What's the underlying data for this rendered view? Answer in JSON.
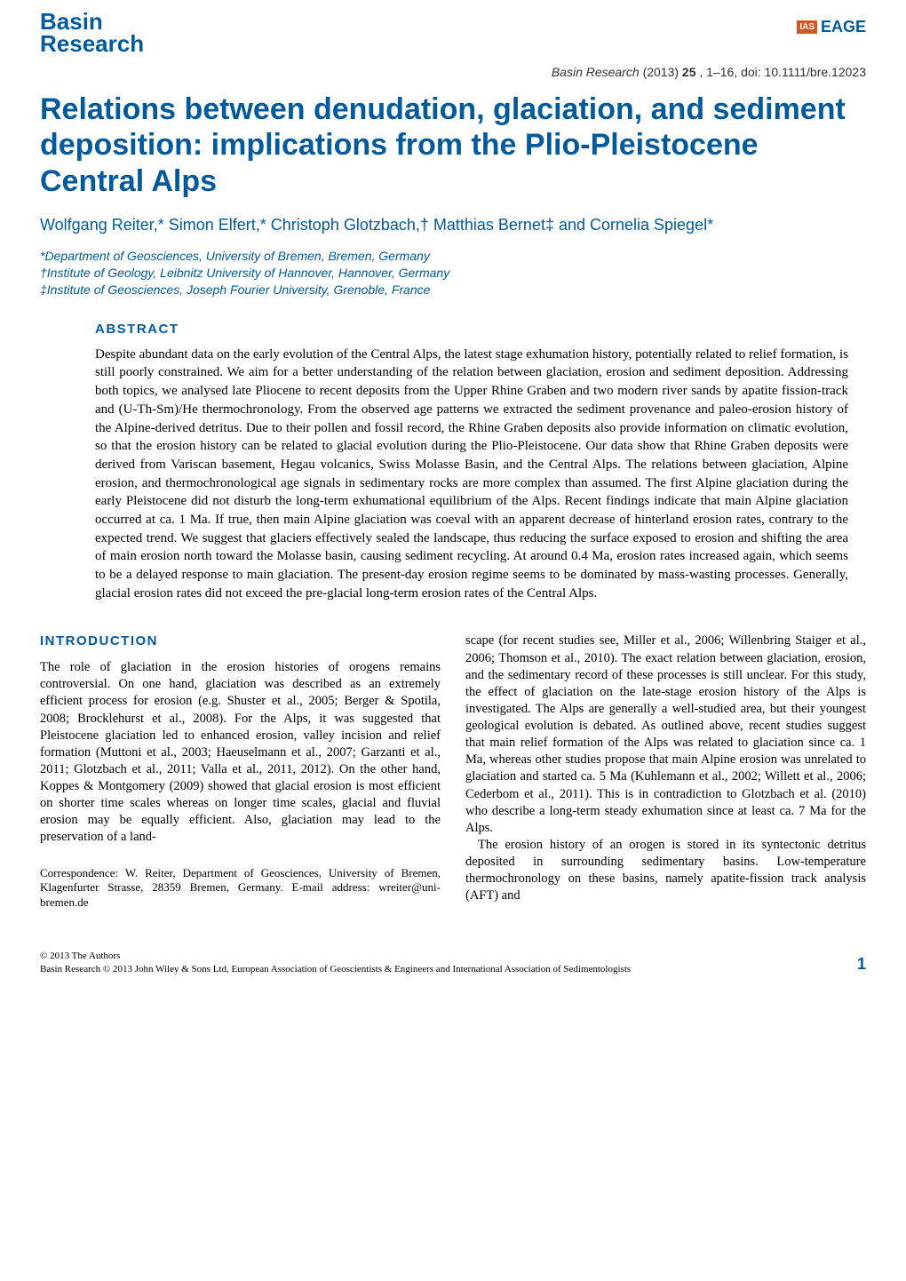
{
  "branding": {
    "logo_line1": "Basin",
    "logo_line2": "Research",
    "ias_badge": "IAS",
    "eage": "EAGE"
  },
  "citation": {
    "journal": "Basin Research",
    "year_vol": "(2013)",
    "volume": "25",
    "pages_doi": ", 1–16, doi: 10.1111/bre.12023"
  },
  "title": "Relations between denudation, glaciation, and sediment deposition: implications from the Plio-Pleistocene Central Alps",
  "authors": "Wolfgang Reiter,* Simon Elfert,* Christoph Glotzbach,† Matthias Bernet‡ and Cornelia Spiegel*",
  "affiliations": [
    "*Department of Geosciences, University of Bremen, Bremen, Germany",
    "†Institute of Geology, Leibnitz University of Hannover, Hannover, Germany",
    "‡Institute of Geosciences, Joseph Fourier University, Grenoble, France"
  ],
  "abstract_heading": "ABSTRACT",
  "abstract_text": "Despite abundant data on the early evolution of the Central Alps, the latest stage exhumation history, potentially related to relief formation, is still poorly constrained. We aim for a better understanding of the relation between glaciation, erosion and sediment deposition. Addressing both topics, we analysed late Pliocene to recent deposits from the Upper Rhine Graben and two modern river sands by apatite fission-track and (U-Th-Sm)/He thermochronology. From the observed age patterns we extracted the sediment provenance and paleo-erosion history of the Alpine-derived detritus. Due to their pollen and fossil record, the Rhine Graben deposits also provide information on climatic evolution, so that the erosion history can be related to glacial evolution during the Plio-Pleistocene. Our data show that Rhine Graben deposits were derived from Variscan basement, Hegau volcanics, Swiss Molasse Basin, and the Central Alps. The relations between glaciation, Alpine erosion, and thermochronological age signals in sedimentary rocks are more complex than assumed. The first Alpine glaciation during the early Pleistocene did not disturb the long-term exhumational equilibrium of the Alps. Recent findings indicate that main Alpine glaciation occurred at ca. 1 Ma. If true, then main Alpine glaciation was coeval with an apparent decrease of hinterland erosion rates, contrary to the expected trend. We suggest that glaciers effectively sealed the landscape, thus reducing the surface exposed to erosion and shifting the area of main erosion north toward the Molasse basin, causing sediment recycling. At around 0.4 Ma, erosion rates increased again, which seems to be a delayed response to main glaciation. The present-day erosion regime seems to be dominated by mass-wasting processes. Generally, glacial erosion rates did not exceed the pre-glacial long-term erosion rates of the Central Alps.",
  "intro_heading": "INTRODUCTION",
  "intro_left": "The role of glaciation in the erosion histories of orogens remains controversial. On one hand, glaciation was described as an extremely efficient process for erosion (e.g. Shuster et al., 2005; Berger & Spotila, 2008; Brocklehurst et al., 2008). For the Alps, it was suggested that Pleistocene glaciation led to enhanced erosion, valley incision and relief formation (Muttoni et al., 2003; Haeuselmann et al., 2007; Garzanti et al., 2011; Glotzbach et al., 2011; Valla et al., 2011, 2012). On the other hand, Koppes & Montgomery (2009) showed that glacial erosion is most efficient on shorter time scales whereas on longer time scales, glacial and fluvial erosion may be equally efficient. Also, glaciation may lead to the preservation of a land-",
  "correspondence": "Correspondence: W. Reiter, Department of Geosciences, University of Bremen, Klagenfurter Strasse, 28359 Bremen, Germany. E-mail address: wreiter@uni-bremen.de",
  "intro_right_p1": "scape (for recent studies see, Miller et al., 2006; Willenbring Staiger et al., 2006; Thomson et al., 2010). The exact relation between glaciation, erosion, and the sedimentary record of these processes is still unclear. For this study, the effect of glaciation on the late-stage erosion history of the Alps is investigated. The Alps are generally a well-studied area, but their youngest geological evolution is debated. As outlined above, recent studies suggest that main relief formation of the Alps was related to glaciation since ca. 1 Ma, whereas other studies propose that main Alpine erosion was unrelated to glaciation and started ca. 5 Ma (Kuhlemann et al., 2002; Willett et al., 2006; Cederbom et al., 2011). This is in contradiction to Glotzbach et al. (2010) who describe a long-term steady exhumation since at least ca. 7 Ma for the Alps.",
  "intro_right_p2": "The erosion history of an orogen is stored in its syntectonic detritus deposited in surrounding sedimentary basins. Low-temperature thermochronology on these basins, namely apatite-fission track analysis (AFT) and",
  "footer": {
    "copyright": "© 2013 The Authors",
    "line2": "Basin Research © 2013 John Wiley & Sons Ltd, European Association of Geoscientists & Engineers and International Association of Sedimentologists",
    "page": "1"
  },
  "colors": {
    "brand_blue": "#005a9c",
    "ias_orange": "#d4571f"
  }
}
